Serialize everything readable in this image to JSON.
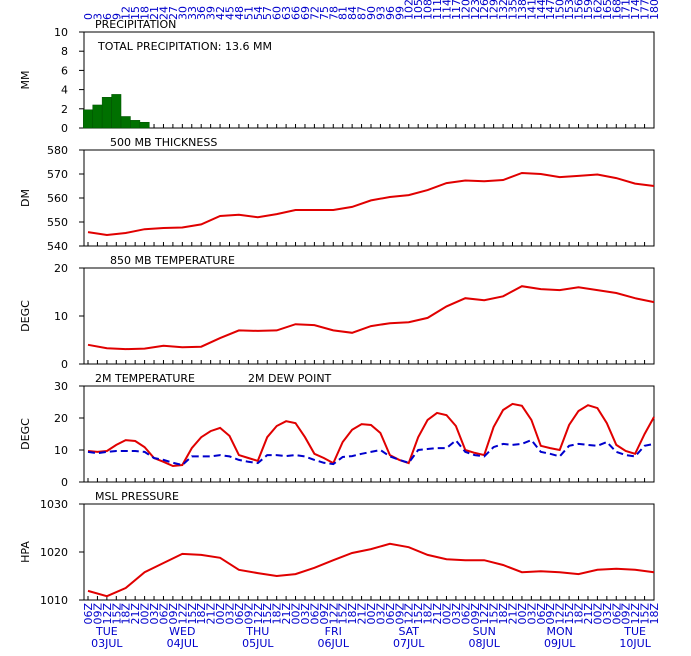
{
  "time_axis": {
    "hours": [
      0,
      3,
      6,
      9,
      12,
      15,
      18,
      21,
      24,
      27,
      30,
      33,
      36,
      39,
      42,
      45,
      48,
      51,
      54,
      57,
      60,
      63,
      66,
      69,
      72,
      75,
      78,
      81,
      84,
      87,
      90,
      93,
      96,
      99,
      102,
      105,
      108,
      111,
      114,
      117,
      120,
      123,
      126,
      129,
      132,
      135,
      138,
      141,
      144,
      147,
      150,
      153,
      156,
      159,
      162,
      165,
      168,
      171,
      174,
      177,
      180
    ],
    "labels": [
      "06Z",
      "09Z",
      "12Z",
      "15Z",
      "18Z",
      "21Z",
      "00Z",
      "03Z",
      "06Z",
      "09Z",
      "12Z",
      "15Z",
      "18Z",
      "21Z",
      "00Z",
      "03Z",
      "06Z",
      "09Z",
      "12Z",
      "15Z",
      "18Z",
      "21Z",
      "00Z",
      "03Z",
      "06Z",
      "09Z",
      "12Z",
      "15Z",
      "18Z",
      "21Z",
      "00Z",
      "03Z",
      "06Z",
      "09Z",
      "12Z",
      "15Z",
      "18Z",
      "21Z",
      "00Z",
      "03Z",
      "06Z",
      "09Z",
      "12Z",
      "15Z",
      "18Z",
      "21Z",
      "00Z",
      "03Z",
      "06Z",
      "09Z",
      "12Z",
      "15Z",
      "18Z",
      "21Z",
      "00Z",
      "03Z",
      "06Z",
      "09Z",
      "12Z",
      "15Z",
      "18Z"
    ],
    "days": [
      {
        "value": 6,
        "day": "TUE",
        "date": "03JUL"
      },
      {
        "value": 30,
        "day": "WED",
        "date": "04JUL"
      },
      {
        "value": 54,
        "day": "THU",
        "date": "05JUL"
      },
      {
        "value": 78,
        "day": "FRI",
        "date": "06JUL"
      },
      {
        "value": 102,
        "day": "SAT",
        "date": "07JUL"
      },
      {
        "value": 126,
        "day": "SUN",
        "date": "08JUL"
      },
      {
        "value": 150,
        "day": "MON",
        "date": "09JUL"
      },
      {
        "value": 174,
        "day": "TUE",
        "date": "10JUL"
      }
    ]
  },
  "chart_data": [
    {
      "type": "bar",
      "title": "PRECIPITATION",
      "annotation": "TOTAL PRECIPITATION:  13.6 MM",
      "ylabel": "MM",
      "color": "#007000",
      "x": [
        0,
        3,
        6,
        9,
        12,
        15,
        18
      ],
      "values": [
        1.9,
        2.4,
        3.2,
        3.5,
        1.2,
        0.8,
        0.6
      ],
      "xlim": [
        0,
        180
      ],
      "ylim": [
        0,
        10
      ],
      "yticks": [
        0,
        2,
        4,
        6,
        8,
        10
      ]
    },
    {
      "type": "line",
      "title": "500 MB  THICKNESS",
      "ylabel": "DM",
      "color": "#e00000",
      "x": [
        0,
        6,
        12,
        18,
        24,
        30,
        36,
        42,
        48,
        54,
        60,
        66,
        72,
        78,
        84,
        90,
        96,
        102,
        108,
        114,
        120,
        126,
        132,
        138,
        144,
        150,
        156,
        162,
        168,
        174,
        180
      ],
      "values": [
        545.8,
        544.6,
        545.4,
        547,
        547.5,
        547.7,
        549,
        552.5,
        553,
        552,
        553.3,
        555,
        555,
        555,
        556.3,
        559,
        560.4,
        561.2,
        563.3,
        566.2,
        567.3,
        567,
        567.5,
        570.4,
        570,
        568.7,
        569.2,
        569.8,
        568.3,
        566,
        565
      ],
      "xlim": [
        0,
        180
      ],
      "ylim": [
        540,
        580
      ],
      "yticks": [
        540,
        550,
        560,
        570,
        580
      ]
    },
    {
      "type": "line",
      "title": "850 MB  TEMPERATURE",
      "ylabel": "DEGC",
      "color": "#e00000",
      "x": [
        0,
        6,
        12,
        18,
        24,
        30,
        36,
        42,
        48,
        54,
        60,
        66,
        72,
        78,
        84,
        90,
        96,
        102,
        108,
        114,
        120,
        126,
        132,
        138,
        144,
        150,
        156,
        162,
        168,
        174,
        180
      ],
      "values": [
        4,
        3.3,
        3.1,
        3.2,
        3.8,
        3.5,
        3.6,
        5.4,
        7,
        6.9,
        7,
        8.3,
        8.1,
        7,
        6.5,
        7.9,
        8.5,
        8.7,
        9.6,
        12,
        13.7,
        13.3,
        14.1,
        16.2,
        15.6,
        15.4,
        16,
        15.4,
        14.8,
        13.7,
        12.9
      ],
      "xlim": [
        0,
        180
      ],
      "ylim": [
        0,
        20
      ],
      "yticks": [
        0,
        10,
        20
      ]
    },
    {
      "type": "line",
      "ylabel": "DEGC",
      "x": [
        0,
        3,
        6,
        9,
        12,
        15,
        18,
        21,
        24,
        27,
        30,
        33,
        36,
        39,
        42,
        45,
        48,
        51,
        54,
        57,
        60,
        63,
        66,
        69,
        72,
        75,
        78,
        81,
        84,
        87,
        90,
        93,
        96,
        99,
        102,
        105,
        108,
        111,
        114,
        117,
        120,
        123,
        126,
        129,
        132,
        135,
        138,
        141,
        144,
        147,
        150,
        153,
        156,
        159,
        162,
        165,
        168,
        171,
        174,
        177,
        180
      ],
      "series": [
        {
          "name": "2M TEMPERATURE",
          "color": "#e00000",
          "dashed": false,
          "values": [
            9.7,
            9.4,
            9.7,
            11.6,
            13.1,
            12.8,
            10.9,
            7.5,
            6.3,
            5,
            5.3,
            10.6,
            14,
            15.9,
            16.9,
            14.4,
            8.4,
            7.5,
            6.6,
            14,
            17.5,
            19,
            18.4,
            14,
            8.8,
            7.5,
            5.9,
            12.5,
            16.3,
            18.1,
            17.8,
            15.3,
            8.4,
            6.9,
            5.9,
            14,
            19.4,
            21.6,
            20.9,
            17.5,
            10,
            9.1,
            8.4,
            17.2,
            22.5,
            24.4,
            23.8,
            19.4,
            11.3,
            10.6,
            10,
            17.8,
            22.2,
            24,
            23.1,
            18.4,
            11.6,
            9.7,
            8.8,
            15,
            20.3
          ]
        },
        {
          "name": "2M  DEW POINT",
          "color": "#0000cc",
          "dashed": true,
          "values": [
            9.4,
            9,
            9.4,
            9.7,
            9.7,
            9.7,
            9.4,
            7.5,
            6.9,
            6,
            5.3,
            8,
            8,
            8,
            8.4,
            8,
            6.9,
            6.3,
            5.9,
            8.4,
            8.4,
            8.1,
            8.4,
            8,
            6.9,
            6,
            5.6,
            7.8,
            8.1,
            8.8,
            9.4,
            10,
            8,
            6.9,
            6,
            10,
            10.3,
            10.6,
            10.6,
            13,
            9.4,
            8.4,
            8,
            10.9,
            11.9,
            11.6,
            11.9,
            13.1,
            9.4,
            8.8,
            8,
            11.3,
            11.9,
            11.6,
            11.3,
            12.5,
            9.4,
            8.4,
            8,
            11.3,
            11.9
          ]
        }
      ],
      "xlim": [
        0,
        180
      ],
      "ylim": [
        0,
        30
      ],
      "yticks": [
        0,
        10,
        20,
        30
      ]
    },
    {
      "type": "line",
      "title": "MSL PRESSURE",
      "ylabel": "HPA",
      "color": "#e00000",
      "x": [
        0,
        6,
        12,
        18,
        24,
        30,
        36,
        42,
        48,
        54,
        60,
        66,
        72,
        78,
        84,
        90,
        96,
        102,
        108,
        114,
        120,
        126,
        132,
        138,
        144,
        150,
        156,
        162,
        168,
        174,
        180
      ],
      "values": [
        1011.9,
        1010.8,
        1012.5,
        1015.8,
        1017.7,
        1019.6,
        1019.4,
        1018.8,
        1016.3,
        1015.6,
        1015,
        1015.4,
        1016.7,
        1018.3,
        1019.8,
        1020.6,
        1021.7,
        1021,
        1019.4,
        1018.5,
        1018.3,
        1018.3,
        1017.3,
        1015.8,
        1016,
        1015.8,
        1015.4,
        1016.3,
        1016.5,
        1016.3,
        1015.8
      ],
      "xlim": [
        0,
        180
      ],
      "ylim": [
        1010,
        1030
      ],
      "yticks": [
        1010,
        1020,
        1030
      ]
    }
  ]
}
